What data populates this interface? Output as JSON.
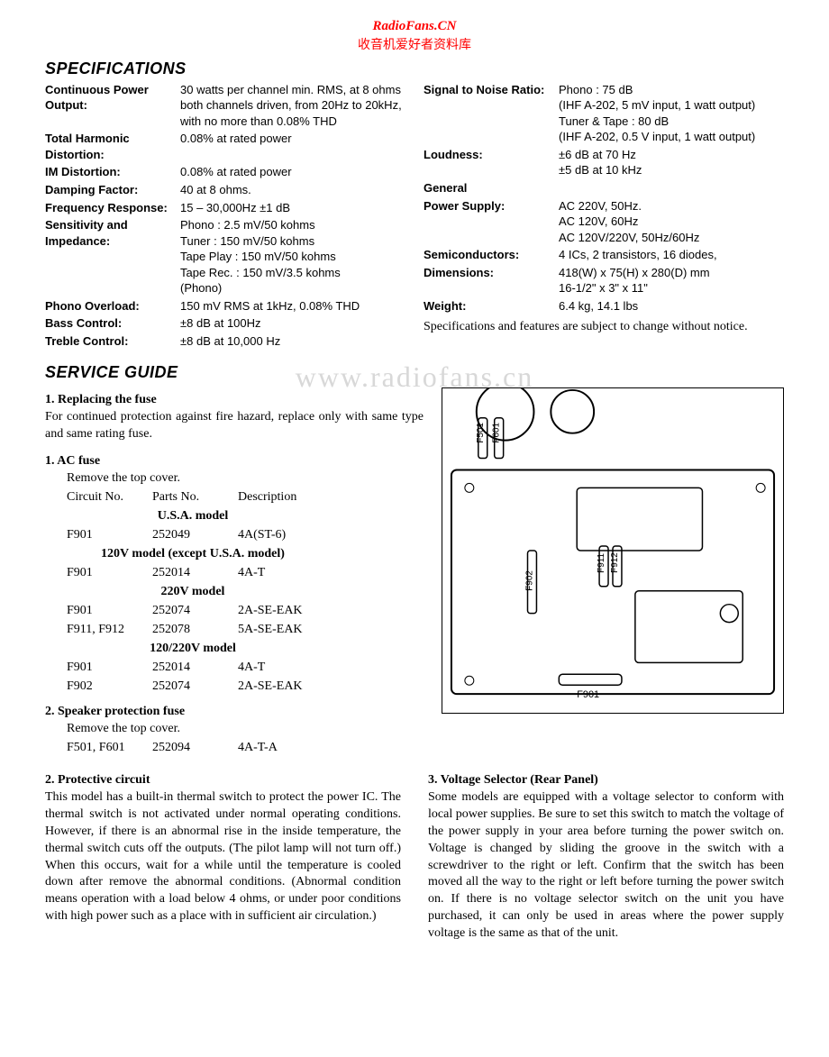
{
  "watermark": {
    "line1": "RadioFans.CN",
    "line2": "收音机爱好者资料库",
    "mid": "www.radiofans.cn"
  },
  "specTitle": "SPECIFICATIONS",
  "serviceTitle": "SERVICE GUIDE",
  "specsLeft": [
    {
      "label": "Continuous Power\nOutput:",
      "value": "30 watts per channel min. RMS, at 8 ohms both channels driven, from 20Hz to 20kHz, with no more than 0.08% THD"
    },
    {
      "label": "Total Harmonic\nDistortion:",
      "value": "0.08% at rated power"
    },
    {
      "label": "IM Distortion:",
      "value": "0.08% at rated power"
    },
    {
      "label": "Damping Factor:",
      "value": "40 at 8 ohms."
    },
    {
      "label": "Frequency Response:",
      "value": "15 – 30,000Hz  ±1 dB"
    },
    {
      "label": "Sensitivity and\nImpedance:",
      "value": "Phono      : 2.5 mV/50 kohms\nTuner       : 150 mV/50 kohms\nTape Play : 150 mV/50 kohms\nTape Rec. : 150 mV/3.5 kohms\n                    (Phono)"
    },
    {
      "label": "Phono Overload:",
      "value": "150 mV RMS at 1kHz, 0.08% THD"
    },
    {
      "label": "Bass Control:",
      "value": "±8 dB at 100Hz"
    },
    {
      "label": "Treble Control:",
      "value": "±8 dB at 10,000 Hz"
    }
  ],
  "specsRight": [
    {
      "label": "Signal to Noise\nRatio:",
      "value": "Phono : 75 dB\n(IHF A-202, 5 mV input, 1 watt output)\nTuner & Tape : 80 dB\n(IHF A-202, 0.5 V input, 1 watt output)"
    },
    {
      "label": "Loudness:",
      "value": "±6 dB at 70 Hz\n±5 dB at 10 kHz"
    },
    {
      "label": "General",
      "value": ""
    },
    {
      "label": "Power Supply:",
      "value": "AC 220V, 50Hz.\nAC 120V, 60Hz\nAC 120V/220V, 50Hz/60Hz"
    },
    {
      "label": "Semiconductors:",
      "value": "4 ICs, 2 transistors, 16 diodes,"
    },
    {
      "label": "Dimensions:",
      "value": "418(W) x 75(H) x 280(D) mm\n16-1/2\" x 3\" x 11\""
    },
    {
      "label": "Weight:",
      "value": "6.4 kg, 14.1 lbs"
    }
  ],
  "specNote": "Specifications and features are subject to change without notice.",
  "fuse": {
    "h1": "1.  Replacing the fuse",
    "p1": "For continued protection against fire hazard, replace only with same type and same rating fuse.",
    "h2": "1.  AC fuse",
    "p2": "Remove the top cover.",
    "head": {
      "c1": "Circuit No.",
      "c2": "Parts No.",
      "c3": "Description"
    },
    "models": [
      {
        "title": "U.S.A. model",
        "rows": [
          {
            "c1": "F901",
            "c2": "252049",
            "c3": "4A(ST-6)"
          }
        ]
      },
      {
        "title": "120V model (except U.S.A. model)",
        "rows": [
          {
            "c1": "F901",
            "c2": "252014",
            "c3": "4A-T"
          }
        ]
      },
      {
        "title": "220V model",
        "rows": [
          {
            "c1": "F901",
            "c2": "252074",
            "c3": "2A-SE-EAK"
          },
          {
            "c1": "F911, F912",
            "c2": "252078",
            "c3": "5A-SE-EAK"
          }
        ]
      },
      {
        "title": "120/220V model",
        "rows": [
          {
            "c1": "F901",
            "c2": "252014",
            "c3": "4A-T"
          },
          {
            "c1": "F902",
            "c2": "252074",
            "c3": "2A-SE-EAK"
          }
        ]
      }
    ],
    "h3": "2.  Speaker protection fuse",
    "p3": "Remove the top cover.",
    "spk": {
      "c1": "F501, F601",
      "c2": "252094",
      "c3": "4A-T-A"
    }
  },
  "diagramLabels": {
    "f501": "F501",
    "f601": "F601",
    "f902": "F902",
    "f911": "F911",
    "f912": "F912",
    "f901": "F901"
  },
  "protective": {
    "h": "2.  Protective circuit",
    "body": "This model has a built-in thermal switch to protect the power IC. The thermal switch is not activated under normal operating conditions.\nHowever, if there is an abnormal rise in the inside temperature, the thermal switch cuts off the outputs.\n(The pilot lamp will not turn off.)\nWhen this occurs, wait for a while until the temperature is cooled down after remove the abnormal conditions.\n(Abnormal condition means operation with a load below 4 ohms, or under poor conditions with high power such as a place with in sufficient air circulation.)"
  },
  "voltage": {
    "h": "3.  Voltage Selector (Rear Panel)",
    "body": "Some models are equipped with a voltage selector to conform with local power supplies.\nBe sure to set this switch to match the voltage of the power supply in your area before turning the power switch on.\nVoltage is changed by sliding the groove in the switch with a screwdriver to the right or left. Confirm that the switch has been moved all the way to the right or left before turning the power switch on.\nIf there is no voltage selector switch on the unit you have purchased, it can only be used in areas where the power supply voltage is the same as that of the unit."
  }
}
